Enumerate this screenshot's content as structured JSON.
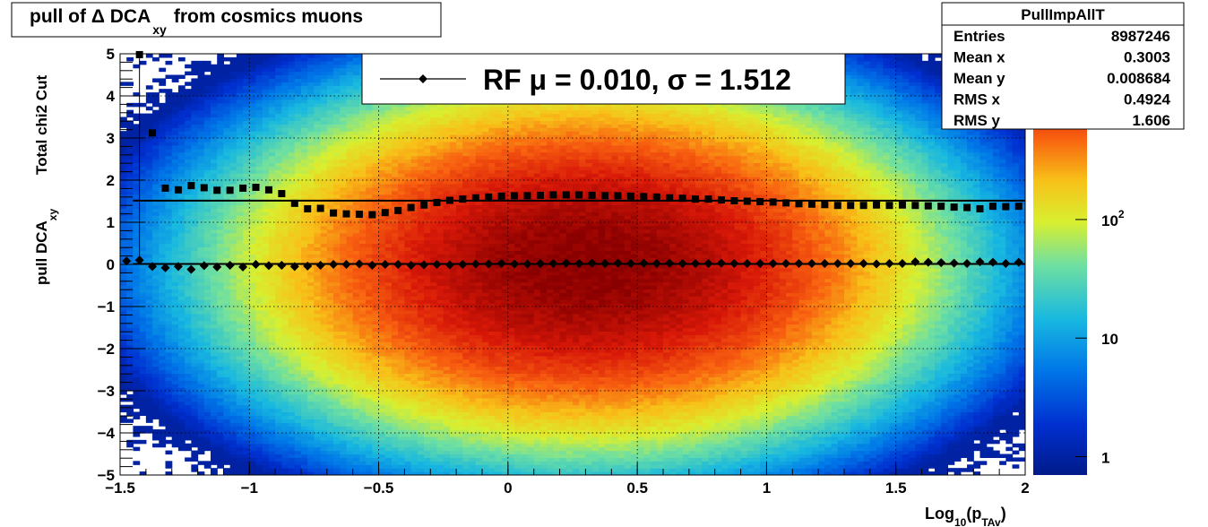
{
  "title": {
    "prefix": "pull of Δ DCA",
    "sub": "xy",
    "suffix": "from cosmics muons"
  },
  "yaxis": {
    "top": "Total chi2 Cut",
    "main": "pull DCA",
    "sub": "xy"
  },
  "xaxis": {
    "main": "Log",
    "sub1": "10",
    "paren_open": "(p",
    "sub2": "TAv",
    "paren_close": ")"
  },
  "legend": {
    "text": "RF μ =  0.010, σ =   1.512"
  },
  "stats": {
    "name": "PullImpAllT",
    "rows": [
      {
        "label": "Entries",
        "value": "8987246"
      },
      {
        "label": "Mean x",
        "value": "0.3003"
      },
      {
        "label": "Mean y",
        "value": "0.008684"
      },
      {
        "label": "RMS x",
        "value": "0.4924"
      },
      {
        "label": "RMS y",
        "value": "1.606"
      }
    ]
  },
  "colorbar": {
    "labels": [
      {
        "base": "1",
        "exp": "",
        "value": 1
      },
      {
        "base": "10",
        "exp": "",
        "value": 10
      },
      {
        "base": "10",
        "exp": "2",
        "value": 100
      }
    ],
    "min": 0.7,
    "max": 2500,
    "log": true
  },
  "chart_data": {
    "type": "heatmap",
    "xlim": [
      -1.5,
      2.0
    ],
    "ylim": [
      -5,
      5
    ],
    "xticks": [
      {
        "v": -1.5,
        "label": "−1.5"
      },
      {
        "v": -1.0,
        "label": "−1"
      },
      {
        "v": -0.5,
        "label": "−0.5"
      },
      {
        "v": 0.0,
        "label": "0"
      },
      {
        "v": 0.5,
        "label": "0.5"
      },
      {
        "v": 1.0,
        "label": "1"
      },
      {
        "v": 1.5,
        "label": "1.5"
      },
      {
        "v": 2.0,
        "label": "2"
      }
    ],
    "yticks": [
      {
        "v": 5,
        "label": "5"
      },
      {
        "v": 4,
        "label": "4"
      },
      {
        "v": 3,
        "label": "3"
      },
      {
        "v": 2,
        "label": "2"
      },
      {
        "v": 1,
        "label": "1"
      },
      {
        "v": 0,
        "label": "0"
      },
      {
        "v": -1,
        "label": "−1"
      },
      {
        "v": -2,
        "label": "−2"
      },
      {
        "v": -3,
        "label": "−3"
      },
      {
        "v": -4,
        "label": "−4"
      },
      {
        "v": -5,
        "label": "−5"
      }
    ],
    "grid": true,
    "heatmap": {
      "peak_x": 0.3,
      "sigma_x": 0.5,
      "sigma_y": 1.6,
      "peak_count": 2500
    },
    "fit_lines": {
      "mean": 0.01,
      "sigma": 1.512
    },
    "mean_points": {
      "x": [
        -1.475,
        -1.425,
        -1.375,
        -1.325,
        -1.275,
        -1.225,
        -1.175,
        -1.125,
        -1.075,
        -1.025,
        -0.975,
        -0.925,
        -0.875,
        -0.825,
        -0.775,
        -0.725,
        -0.675,
        -0.625,
        -0.575,
        -0.525,
        -0.475,
        -0.425,
        -0.375,
        -0.325,
        -0.275,
        -0.225,
        -0.175,
        -0.125,
        -0.075,
        -0.025,
        0.025,
        0.075,
        0.125,
        0.175,
        0.225,
        0.275,
        0.325,
        0.375,
        0.425,
        0.475,
        0.525,
        0.575,
        0.625,
        0.675,
        0.725,
        0.775,
        0.825,
        0.875,
        0.925,
        0.975,
        1.025,
        1.075,
        1.125,
        1.175,
        1.225,
        1.275,
        1.325,
        1.375,
        1.425,
        1.475,
        1.525,
        1.575,
        1.625,
        1.675,
        1.725,
        1.775,
        1.825,
        1.875,
        1.925,
        1.975
      ],
      "y": [
        0.08,
        0.1,
        -0.05,
        -0.08,
        -0.05,
        -0.12,
        -0.03,
        -0.06,
        -0.02,
        -0.06,
        0.0,
        -0.03,
        -0.02,
        -0.05,
        -0.04,
        -0.02,
        0.0,
        0.0,
        0.01,
        -0.02,
        0.0,
        0.0,
        -0.02,
        -0.01,
        0.0,
        -0.01,
        0.0,
        0.01,
        0.01,
        0.02,
        0.01,
        0.01,
        0.02,
        0.02,
        0.03,
        0.02,
        0.03,
        0.02,
        0.03,
        0.02,
        0.03,
        0.02,
        0.03,
        0.02,
        0.02,
        0.02,
        0.03,
        0.02,
        0.02,
        0.02,
        0.02,
        0.02,
        0.02,
        0.02,
        0.02,
        0.02,
        0.02,
        0.02,
        0.01,
        0.02,
        0.02,
        0.06,
        0.05,
        0.04,
        0.03,
        0.02,
        0.06,
        0.05,
        0.02,
        0.05
      ]
    },
    "rms_points": {
      "x": [
        -1.425,
        -1.375,
        -1.325,
        -1.275,
        -1.225,
        -1.175,
        -1.125,
        -1.075,
        -1.025,
        -0.975,
        -0.925,
        -0.875,
        -0.825,
        -0.775,
        -0.725,
        -0.675,
        -0.625,
        -0.575,
        -0.525,
        -0.475,
        -0.425,
        -0.375,
        -0.325,
        -0.275,
        -0.225,
        -0.175,
        -0.125,
        -0.075,
        -0.025,
        0.025,
        0.075,
        0.125,
        0.175,
        0.225,
        0.275,
        0.325,
        0.375,
        0.425,
        0.475,
        0.525,
        0.575,
        0.625,
        0.675,
        0.725,
        0.775,
        0.825,
        0.875,
        0.925,
        0.975,
        1.025,
        1.075,
        1.125,
        1.175,
        1.225,
        1.275,
        1.325,
        1.375,
        1.425,
        1.475,
        1.525,
        1.575,
        1.625,
        1.675,
        1.725,
        1.775,
        1.825,
        1.875,
        1.925,
        1.975
      ],
      "y": [
        4.98,
        3.12,
        1.81,
        1.77,
        1.87,
        1.82,
        1.76,
        1.76,
        1.81,
        1.83,
        1.77,
        1.68,
        1.45,
        1.32,
        1.33,
        1.22,
        1.2,
        1.19,
        1.18,
        1.23,
        1.28,
        1.35,
        1.41,
        1.47,
        1.52,
        1.55,
        1.58,
        1.6,
        1.62,
        1.63,
        1.63,
        1.64,
        1.65,
        1.65,
        1.65,
        1.64,
        1.63,
        1.63,
        1.62,
        1.61,
        1.6,
        1.58,
        1.57,
        1.55,
        1.55,
        1.53,
        1.51,
        1.5,
        1.49,
        1.48,
        1.46,
        1.44,
        1.43,
        1.42,
        1.4,
        1.4,
        1.4,
        1.41,
        1.4,
        1.41,
        1.4,
        1.39,
        1.38,
        1.36,
        1.35,
        1.32,
        1.38,
        1.37,
        1.38
      ]
    }
  }
}
